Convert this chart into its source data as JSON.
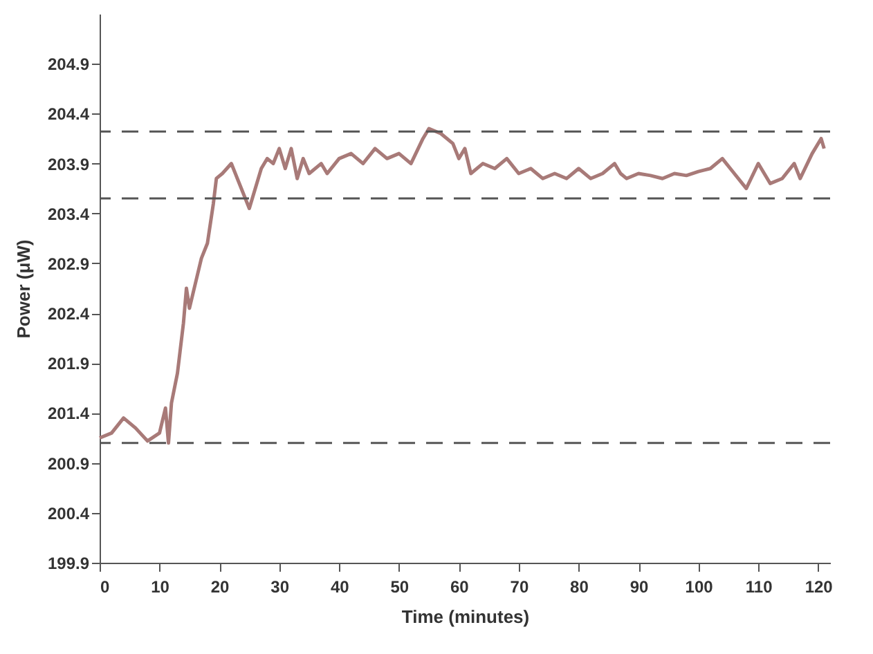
{
  "chart_data": {
    "type": "line",
    "xlabel": "Time (minutes)",
    "ylabel": "Power (μW)",
    "xlim": [
      0,
      122
    ],
    "ylim": [
      199.9,
      205.4
    ],
    "xticks": [
      0,
      10,
      20,
      30,
      40,
      50,
      60,
      70,
      80,
      90,
      100,
      110,
      120
    ],
    "yticks": [
      199.9,
      200.4,
      200.9,
      201.4,
      201.9,
      202.4,
      202.9,
      203.4,
      203.9,
      204.4,
      204.9
    ],
    "grid": false,
    "marker": "none",
    "line_style": "solid",
    "series": [
      {
        "color": "#a87a78",
        "x": [
          0,
          2,
          4,
          6,
          8,
          10,
          11,
          11.5,
          12,
          13,
          14,
          14.5,
          15,
          16,
          17,
          18,
          19,
          19.5,
          20.5,
          22,
          23,
          25,
          27,
          28,
          29,
          30,
          31,
          32,
          33,
          34,
          35,
          37,
          38,
          40,
          42,
          44,
          46,
          48,
          50,
          52,
          54,
          55,
          57,
          59,
          60,
          61,
          62,
          64,
          66,
          68,
          70,
          72,
          74,
          76,
          78,
          80,
          82,
          84,
          86,
          87,
          88,
          90,
          92,
          94,
          96,
          98,
          100,
          102,
          104,
          106,
          108,
          110,
          112,
          114,
          116,
          117,
          119,
          120.5,
          121
        ],
        "values": [
          201.15,
          201.2,
          201.35,
          201.25,
          201.12,
          201.2,
          201.45,
          201.1,
          201.5,
          201.8,
          202.3,
          202.65,
          202.45,
          202.7,
          202.95,
          203.1,
          203.5,
          203.75,
          203.8,
          203.9,
          203.75,
          203.45,
          203.85,
          203.95,
          203.9,
          204.05,
          203.85,
          204.05,
          203.75,
          203.95,
          203.8,
          203.9,
          203.8,
          203.95,
          204.0,
          203.9,
          204.05,
          203.95,
          204.0,
          203.9,
          204.15,
          204.25,
          204.2,
          204.1,
          203.95,
          204.05,
          203.8,
          203.9,
          203.85,
          203.95,
          203.8,
          203.85,
          203.75,
          203.8,
          203.75,
          203.85,
          203.75,
          203.8,
          203.9,
          203.8,
          203.75,
          203.8,
          203.78,
          203.75,
          203.8,
          203.78,
          203.82,
          203.85,
          203.95,
          203.8,
          203.65,
          203.9,
          203.7,
          203.75,
          203.9,
          203.75,
          204.0,
          204.15,
          204.05
        ]
      }
    ],
    "ref_lines": [
      {
        "axis": "y",
        "value": 204.22,
        "color": "#555555",
        "line_style": "dashed"
      },
      {
        "axis": "y",
        "value": 203.55,
        "color": "#555555",
        "line_style": "dashed"
      },
      {
        "axis": "y",
        "value": 201.1,
        "color": "#555555",
        "line_style": "dashed"
      }
    ]
  }
}
